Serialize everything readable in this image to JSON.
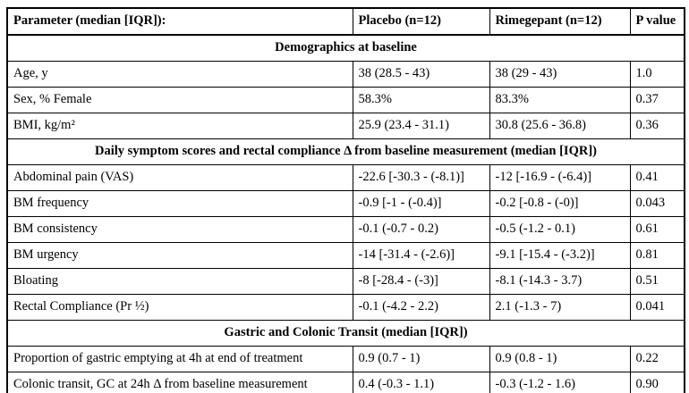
{
  "table": {
    "columns": [
      "Parameter (median [IQR]):",
      "Placebo (n=12)",
      "Rimegepant (n=12)",
      "P value"
    ],
    "rows": [
      {
        "type": "section",
        "label": "Demographics at baseline"
      },
      {
        "type": "data",
        "cells": [
          "Age, y",
          "38 (28.5 - 43)",
          "38 (29 - 43)",
          "1.0"
        ]
      },
      {
        "type": "data",
        "cells": [
          "Sex, % Female",
          "58.3%",
          "83.3%",
          "0.37"
        ]
      },
      {
        "type": "data",
        "cells": [
          "BMI, kg/m²",
          "25.9 (23.4 - 31.1)",
          "30.8 (25.6 - 36.8)",
          "0.36"
        ]
      },
      {
        "type": "section",
        "label": "Daily symptom scores and rectal compliance Δ from baseline measurement (median [IQR])"
      },
      {
        "type": "data",
        "cells": [
          "Abdominal pain (VAS)",
          "-22.6 [-30.3 - (-8.1)]",
          "-12 [-16.9 - (-6.4)]",
          "0.41"
        ]
      },
      {
        "type": "data",
        "cells": [
          "BM frequency",
          "-0.9 [-1 - (-0.4)]",
          "-0.2 [-0.8 - (-0)]",
          "0.043"
        ]
      },
      {
        "type": "data",
        "cells": [
          "BM consistency",
          "-0.1 (-0.7 - 0.2)",
          "-0.5 (-1.2 - 0.1)",
          "0.61"
        ]
      },
      {
        "type": "data",
        "cells": [
          "BM urgency",
          "-14 [-31.4 - (-2.6)]",
          "-9.1 [-15.4 - (-3.2)]",
          "0.81"
        ]
      },
      {
        "type": "data",
        "cells": [
          "Bloating",
          "-8 [-28.4 - (-3)]",
          "-8.1 (-14.3 - 3.7)",
          "0.51"
        ]
      },
      {
        "type": "data",
        "cells": [
          "Rectal Compliance (Pr ½)",
          "-0.1 (-4.2 - 2.2)",
          "2.1 (-1.3 - 7)",
          "0.041"
        ]
      },
      {
        "type": "section",
        "label": "Gastric and Colonic Transit (median [IQR])"
      },
      {
        "type": "data",
        "cells": [
          "Proportion of gastric emptying at 4h at end of treatment",
          "0.9 (0.7 - 1)",
          "0.9 (0.8 - 1)",
          "0.22"
        ]
      },
      {
        "type": "data",
        "cells": [
          "Colonic transit, GC at 24h Δ from baseline measurement",
          "0.4 (-0.3 - 1.1)",
          "-0.3 (-1.2 - 1.6)",
          "0.90"
        ]
      }
    ]
  }
}
